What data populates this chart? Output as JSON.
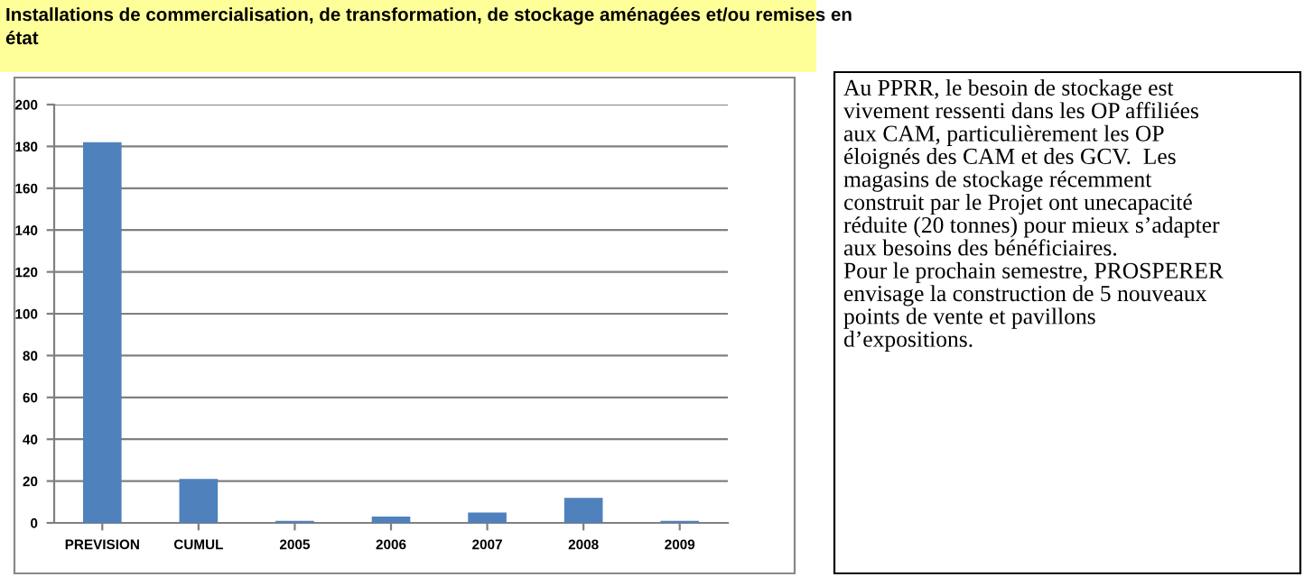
{
  "chart_data": {
    "type": "bar",
    "title": "Installations de commercialisation, de transformation, de stockage aménagées et/ou remises en\nétat",
    "categories": [
      "PREVISION",
      "CUMUL",
      "2005",
      "2006",
      "2007",
      "2008",
      "2009"
    ],
    "values": [
      182,
      21,
      1,
      3,
      5,
      12,
      1
    ],
    "color": "#4f81bd",
    "ylim": [
      0,
      200
    ],
    "yticks": [
      0,
      20,
      40,
      60,
      80,
      100,
      120,
      140,
      160,
      180,
      200
    ],
    "grid": "y",
    "annotations": [
      "Au PPRR, le besoin de stockage est\nvivement ressenti dans les OP affiliées\naux CAM, particulièrement les OP\néloignés des CAM et des GCV.  Les\nmagasins de stockage récemment\nconstruit par le Projet ont unecapacité\nréduite (20 tonnes) pour mieux s’adapter\naux besoins des bénéficiaires.\nPour le prochain semestre, PROSPERER\nenvisage la construction de 5 nouveaux\npoints de vente et pavillons\nd’expositions."
    ]
  }
}
